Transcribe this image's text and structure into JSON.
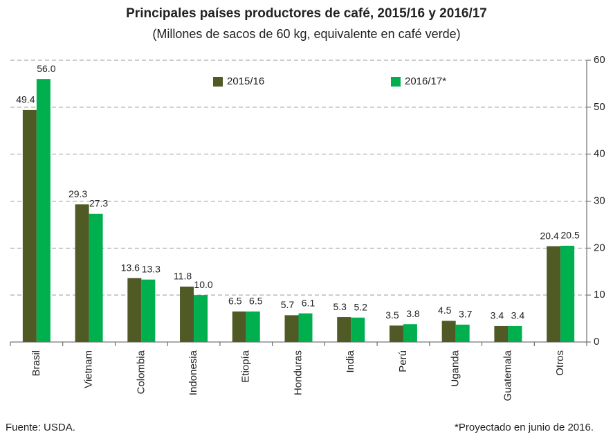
{
  "chart_data": {
    "type": "bar",
    "title": "Principales países productores de café, 2015/16 y 2016/17",
    "subtitle": "(Millones de sacos de 60 kg, equivalente en café verde)",
    "categories": [
      "Brasil",
      "Vietnam",
      "Colombia",
      "Indonesia",
      "Etiopía",
      "Honduras",
      "India",
      "Perú",
      "Uganda",
      "Guatemala",
      "Otros"
    ],
    "series": [
      {
        "name": "2015/16",
        "color": "#4f5a24",
        "values": [
          49.4,
          29.3,
          13.6,
          11.8,
          6.5,
          5.7,
          5.3,
          3.5,
          4.5,
          3.4,
          20.4
        ],
        "value_labels": [
          "49.4",
          "29.3",
          "13.6",
          "11.8",
          "6.5",
          "5.7",
          "5.3",
          "3.5",
          "4.5",
          "3.4",
          "20.4"
        ]
      },
      {
        "name": "2016/17*",
        "color": "#00b04f",
        "values": [
          56.0,
          27.3,
          13.3,
          10.0,
          6.5,
          6.1,
          5.2,
          3.8,
          3.7,
          3.4,
          20.5
        ],
        "value_labels": [
          "56.0",
          "27.3",
          "13.3",
          "10.0",
          "6.5",
          "6.1",
          "5.2",
          "3.8",
          "3.7",
          "3.4",
          "20.5"
        ]
      }
    ],
    "ylim": [
      0,
      60
    ],
    "yticks": [
      0,
      10,
      20,
      30,
      40,
      50,
      60
    ],
    "grid": true,
    "y_axis_side": "right",
    "source": "Fuente: USDA.",
    "footnote": "*Proyectado en junio de 2016."
  }
}
